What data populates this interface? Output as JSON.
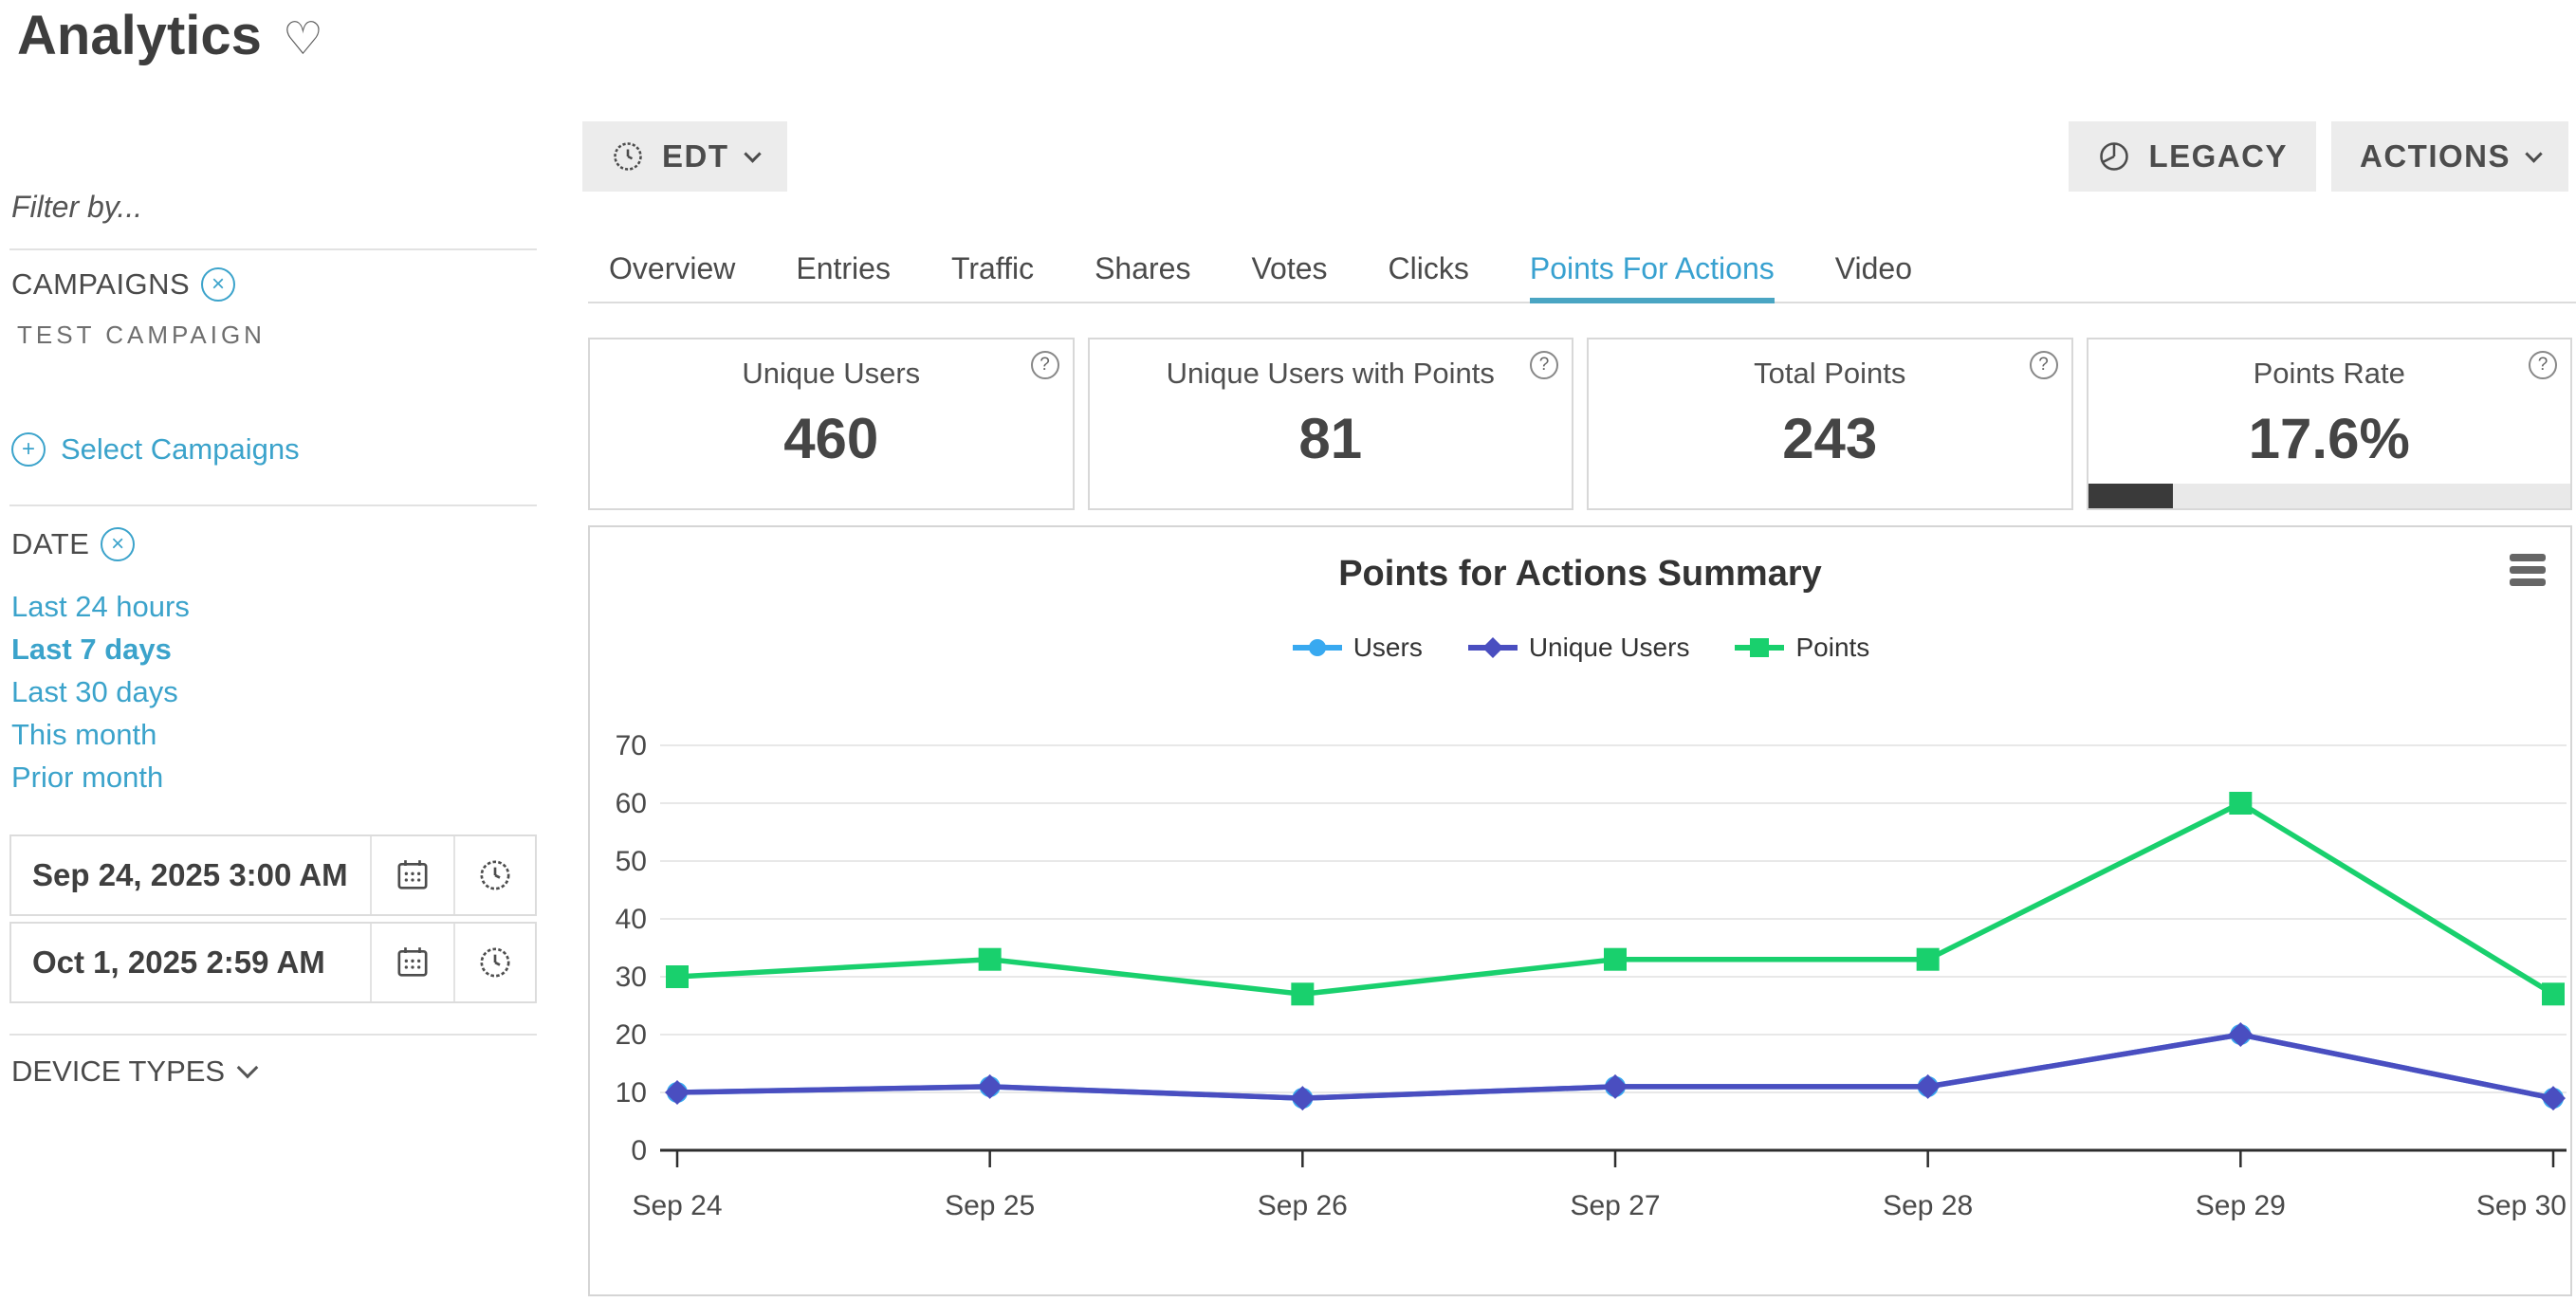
{
  "page": {
    "title": "Analytics"
  },
  "sidebar": {
    "filter_label": "Filter by...",
    "campaigns": {
      "label": "CAMPAIGNS",
      "selected": "TEST CAMPAIGN",
      "select_link": "Select Campaigns"
    },
    "date": {
      "label": "DATE",
      "quick_links": [
        {
          "label": "Last 24 hours",
          "active": false
        },
        {
          "label": "Last 7 days",
          "active": true
        },
        {
          "label": "Last 30 days",
          "active": false
        },
        {
          "label": "This month",
          "active": false
        },
        {
          "label": "Prior month",
          "active": false
        }
      ],
      "start_value": "Sep 24, 2025 3:00 AM",
      "end_value": "Oct 1, 2025 2:59 AM"
    },
    "device_types_label": "DEVICE TYPES"
  },
  "toolbar": {
    "timezone_label": "EDT",
    "legacy_label": "LEGACY",
    "actions_label": "ACTIONS"
  },
  "tabs": [
    {
      "label": "Overview",
      "active": false
    },
    {
      "label": "Entries",
      "active": false
    },
    {
      "label": "Traffic",
      "active": false
    },
    {
      "label": "Shares",
      "active": false
    },
    {
      "label": "Votes",
      "active": false
    },
    {
      "label": "Clicks",
      "active": false
    },
    {
      "label": "Points For Actions",
      "active": true
    },
    {
      "label": "Video",
      "active": false
    }
  ],
  "stat_cards": [
    {
      "title": "Unique Users",
      "value": "460"
    },
    {
      "title": "Unique Users with Points",
      "value": "81"
    },
    {
      "title": "Total Points",
      "value": "243"
    },
    {
      "title": "Points Rate",
      "value": "17.6%",
      "progress_percent": 17.6
    }
  ],
  "chart_data": {
    "type": "line",
    "title": "Points for Actions Summary",
    "categories": [
      "Sep 24",
      "Sep 25",
      "Sep 26",
      "Sep 27",
      "Sep 28",
      "Sep 29",
      "Sep 30"
    ],
    "series": [
      {
        "name": "Users",
        "color": "#38a9f0",
        "marker": "circle",
        "values": [
          10,
          11,
          9,
          11,
          11,
          20,
          9
        ]
      },
      {
        "name": "Unique Users",
        "color": "#4a4ec0",
        "marker": "diamond",
        "values": [
          10,
          11,
          9,
          11,
          11,
          20,
          9
        ]
      },
      {
        "name": "Points",
        "color": "#19d06d",
        "marker": "square",
        "values": [
          30,
          33,
          27,
          33,
          33,
          60,
          27
        ]
      }
    ],
    "ylabel": "",
    "xlabel": "",
    "ylim": [
      0,
      70
    ],
    "yticks": [
      0,
      10,
      20,
      30,
      40,
      50,
      60,
      70
    ],
    "grid": true,
    "legend_position": "top",
    "grid_color": "#e8e8e8",
    "axis_color": "#2e2e2e",
    "tick_label_color": "#4a4a4a"
  }
}
